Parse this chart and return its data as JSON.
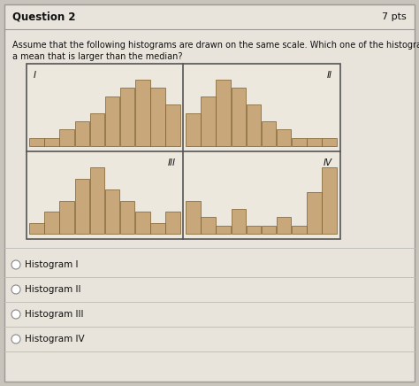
{
  "title": "Question 2",
  "pts": "7 pts",
  "question_text_line1": "Assume that the following histograms are drawn on the same scale. Which one of the histograms has",
  "question_text_line2": "a mean that is larger than the median?",
  "hist1_values": [
    1,
    1,
    2,
    3,
    4,
    6,
    7,
    8,
    7,
    5
  ],
  "hist2_values": [
    4,
    6,
    8,
    7,
    5,
    3,
    2,
    1,
    1,
    1
  ],
  "hist3_values": [
    1,
    2,
    3,
    5,
    6,
    4,
    3,
    2,
    1,
    2
  ],
  "hist4_values": [
    4,
    2,
    1,
    3,
    1,
    1,
    2,
    1,
    5,
    8
  ],
  "bar_color": "#c8a87a",
  "bar_edge_color": "#7a5c28",
  "bg_color": "#c8c4bb",
  "panel_bg": "#e8e4dc",
  "hist_bg": "#ede8de",
  "answer_choices": [
    "Histogram I",
    "Histogram II",
    "Histogram III",
    "Histogram IV"
  ],
  "labels": [
    "I",
    "II",
    "III",
    "IV"
  ],
  "font_color": "#111111"
}
